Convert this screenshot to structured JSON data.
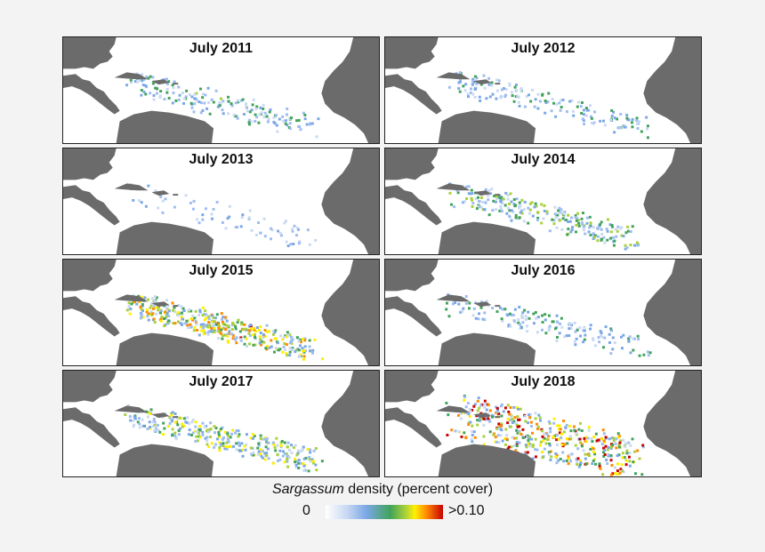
{
  "panels": [
    {
      "title": "July 2011",
      "pattern": "light"
    },
    {
      "title": "July 2012",
      "pattern": "light-east"
    },
    {
      "title": "July 2013",
      "pattern": "minimal"
    },
    {
      "title": "July 2014",
      "pattern": "moderate"
    },
    {
      "title": "July 2015",
      "pattern": "heavy"
    },
    {
      "title": "July 2016",
      "pattern": "light-east"
    },
    {
      "title": "July 2017",
      "pattern": "moderate-heavy"
    },
    {
      "title": "July 2018",
      "pattern": "very-heavy"
    }
  ],
  "legend": {
    "title_italic": "Sargassum",
    "title_rest": " density (percent cover)",
    "min_label": "0",
    "max_label": ">0.10",
    "colors": [
      "#ffffff",
      "#c9d9f2",
      "#7aa7e6",
      "#41a35a",
      "#a9d13a",
      "#ffef00",
      "#ff8a00",
      "#c80000"
    ]
  },
  "colors": {
    "land": "#6b6b6b",
    "ocean": "#ffffff",
    "background": "#f3f3f3"
  }
}
